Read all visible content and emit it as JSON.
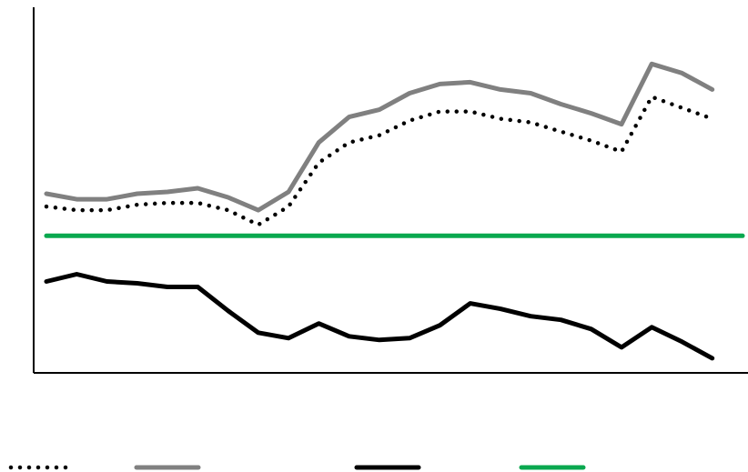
{
  "chart_data": {
    "type": "line",
    "title": "",
    "xlabel": "",
    "ylabel": "",
    "x": [
      1,
      2,
      3,
      4,
      5,
      6,
      7,
      8,
      9,
      10,
      11,
      12,
      13,
      14,
      15,
      16,
      17,
      18,
      19,
      20,
      21,
      22,
      23,
      24
    ],
    "ylim": [
      0,
      100
    ],
    "grid": false,
    "legend_position": "bottom",
    "series": [
      {
        "color": "#000000",
        "style": "dotted",
        "values": [
          45.5,
          44.5,
          44.5,
          46,
          46.5,
          46.5,
          44.5,
          40.5,
          45.5,
          57.5,
          63,
          65,
          69,
          71.5,
          71.5,
          69.5,
          68.5,
          66,
          63.5,
          60.5,
          75.5,
          72.5,
          69.5,
          0
        ],
        "trim_last": true
      },
      {
        "color": "#808080",
        "style": "solid",
        "values": [
          49,
          47.5,
          47.5,
          49,
          49.5,
          50.5,
          48,
          44.5,
          49.5,
          63,
          70,
          72,
          76.5,
          79,
          79.5,
          77.5,
          76.5,
          73.5,
          71,
          68,
          84.5,
          82,
          77.5,
          0
        ],
        "trim_last": true
      },
      {
        "color": "#000000",
        "style": "solid",
        "values": [
          25,
          27,
          25,
          24.5,
          23.5,
          23.5,
          17,
          11,
          9.5,
          13.5,
          10,
          9,
          9.5,
          13,
          19,
          17.5,
          15.5,
          14.5,
          12,
          7,
          12.5,
          8.5,
          4,
          0
        ],
        "trim_last": true
      },
      {
        "color": "#0aa84f",
        "style": "solid",
        "values": [
          37.5,
          37.5,
          37.5,
          37.5,
          37.5,
          37.5,
          37.5,
          37.5,
          37.5,
          37.5,
          37.5,
          37.5,
          37.5,
          37.5,
          37.5,
          37.5,
          37.5,
          37.5,
          37.5,
          37.5,
          37.5,
          37.5,
          37.5,
          37.5
        ],
        "trim_last": false
      }
    ]
  }
}
